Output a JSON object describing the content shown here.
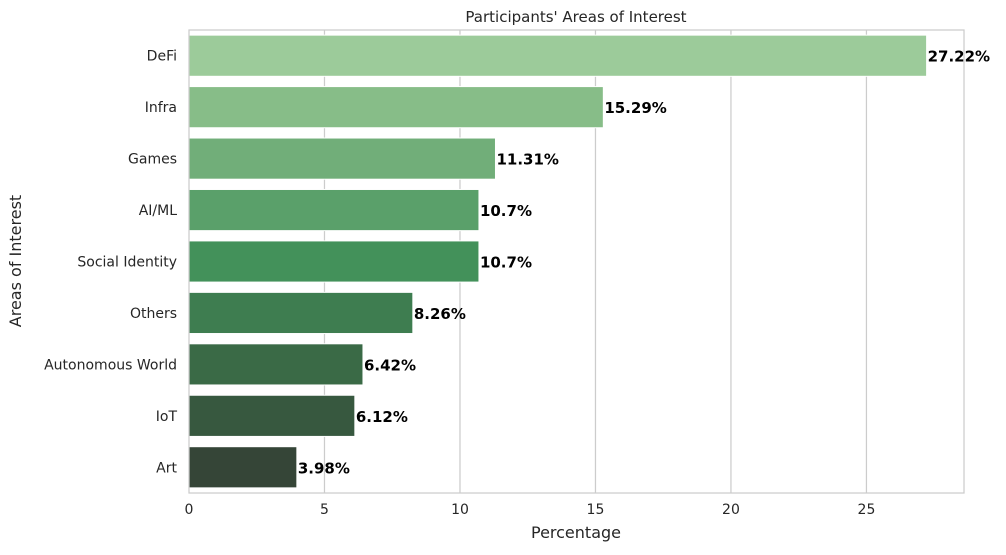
{
  "chart_data": {
    "type": "bar",
    "orientation": "horizontal",
    "title": "Participants' Areas of Interest",
    "xlabel": "Percentage",
    "ylabel": "Areas of Interest",
    "categories": [
      "DeFi",
      "Infra",
      "Games",
      "AI/ML",
      "Social Identity",
      "Others",
      "Autonomous World",
      "IoT",
      "Art"
    ],
    "values": [
      27.22,
      15.29,
      11.31,
      10.7,
      10.7,
      8.26,
      6.42,
      6.12,
      3.98
    ],
    "data_labels": [
      "27.22%",
      "15.29%",
      "11.31%",
      "10.7%",
      "10.7%",
      "8.26%",
      "6.42%",
      "6.12%",
      "3.98%"
    ],
    "bar_colors": [
      "#9ccb9a",
      "#87bd88",
      "#71ae79",
      "#5aa06a",
      "#43915a",
      "#3e7d50",
      "#3a6a46",
      "#37583f",
      "#354537"
    ],
    "xticks": [
      0,
      5,
      10,
      15,
      20,
      25
    ],
    "xtick_labels": [
      "0",
      "5",
      "10",
      "15",
      "20",
      "25"
    ],
    "xlim": [
      0,
      28.6
    ],
    "grid": "vertical",
    "legend": "none"
  }
}
